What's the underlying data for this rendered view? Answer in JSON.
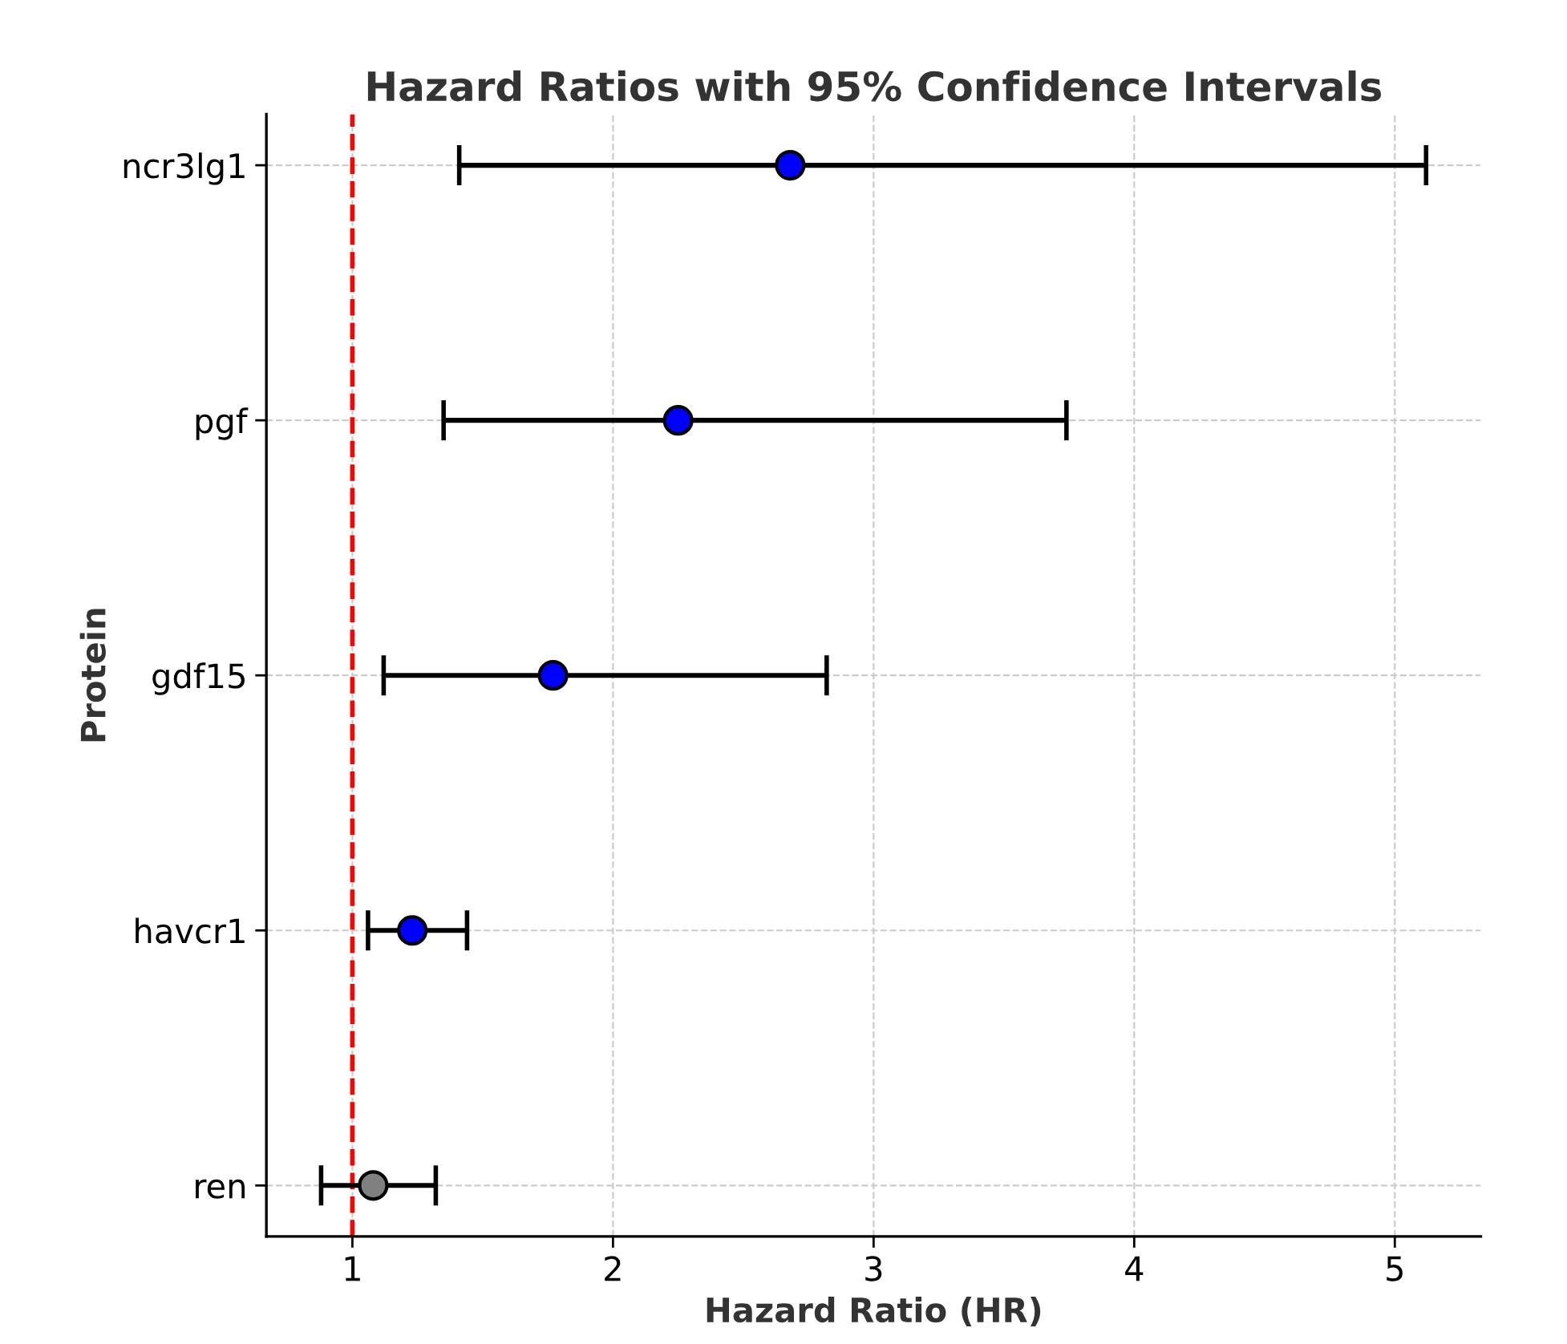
{
  "chart_data": {
    "type": "scatter",
    "orientation": "horizontal",
    "title": "Hazard Ratios with 95% Confidence Intervals",
    "xlabel": "Hazard Ratio (HR)",
    "ylabel": "Protein",
    "categories": [
      "ncr3lg1",
      "pgf",
      "gdf15",
      "havcr1",
      "ren"
    ],
    "values": [
      2.68,
      2.25,
      1.77,
      1.23,
      1.08
    ],
    "colors": [
      "#0000ff",
      "#0000ff",
      "#0000ff",
      "#0000ff",
      "#808080"
    ],
    "errors": [
      [
        1.41,
        5.12
      ],
      [
        1.35,
        3.74
      ],
      [
        1.12,
        2.82
      ],
      [
        1.06,
        1.44
      ],
      [
        0.88,
        1.32
      ]
    ],
    "xlim": [
      0.67,
      5.33
    ],
    "xticks": [
      1,
      2,
      3,
      4,
      5
    ],
    "grid": true,
    "marker": "circle",
    "ref_lines": [
      {
        "axis": "x",
        "value": 1,
        "color": "#ff0000",
        "line_style": "dashed"
      }
    ]
  }
}
